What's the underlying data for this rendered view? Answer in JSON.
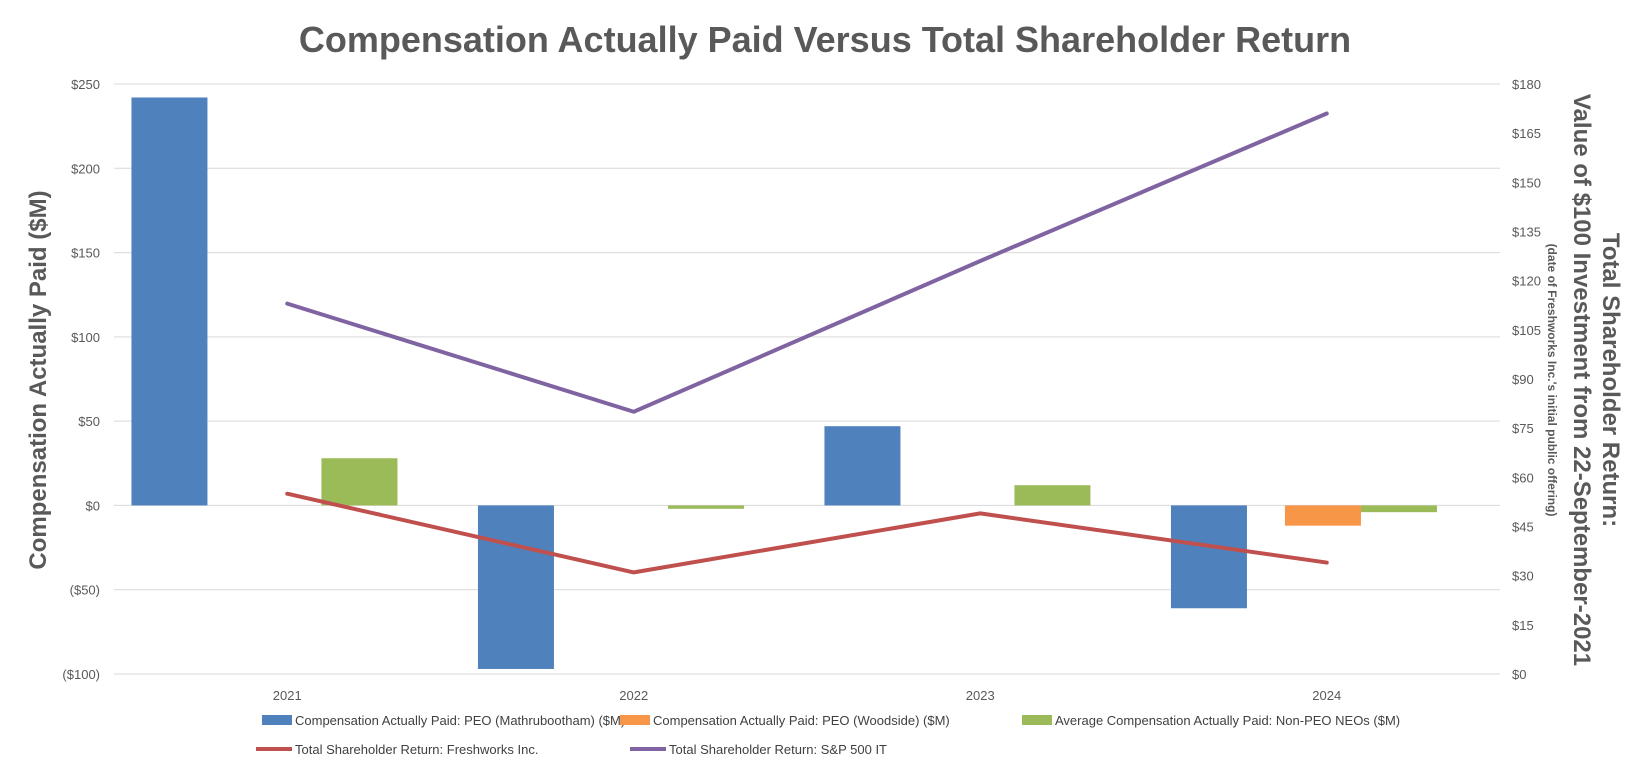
{
  "chart_data": {
    "type": "bar+line",
    "title": "Compensation Actually Paid Versus Total Shareholder Return",
    "categories": [
      "2021",
      "2022",
      "2023",
      "2024"
    ],
    "ylabel": "Compensation Actually Paid ($M)",
    "ylim": [
      -100,
      250
    ],
    "yticks": [
      "($100)",
      "($50)",
      "$0",
      "$50",
      "$100",
      "$150",
      "$200",
      "$250"
    ],
    "y2label": "Total Shareholder Return:",
    "y2label_line2": "Value of $100 Investment from 22-September-2021",
    "y2label_line3": "(date of Freshworks Inc.'s initial public offering)",
    "y2lim": [
      0,
      180
    ],
    "y2ticks": [
      "$0",
      "$15",
      "$30",
      "$45",
      "$60",
      "$75",
      "$90",
      "$105",
      "$120",
      "$135",
      "$150",
      "$165",
      "$180"
    ],
    "grid": true,
    "legend": "bottom",
    "bar_series": [
      {
        "name": "Compensation Actually Paid: PEO (Mathrubootham) ($M)",
        "color": "#4f81bd",
        "values": [
          242,
          -97,
          47,
          -61
        ]
      },
      {
        "name": "Compensation Actually Paid: PEO (Woodside) ($M)",
        "color": "#f79646",
        "values": [
          null,
          null,
          null,
          -12
        ]
      },
      {
        "name": "Average Compensation Actually Paid: Non-PEO NEOs ($M)",
        "color": "#9bbb59",
        "values": [
          28,
          -2,
          12,
          -4
        ]
      }
    ],
    "line_series": [
      {
        "name": "Total Shareholder Return: Freshworks Inc.",
        "color": "#c0504d",
        "axis": "right",
        "values": [
          55,
          31,
          49,
          34
        ]
      },
      {
        "name": "Total Shareholder Return: S&P 500 IT",
        "color": "#8064a2",
        "axis": "right",
        "values": [
          113,
          80,
          126,
          171
        ]
      }
    ]
  }
}
